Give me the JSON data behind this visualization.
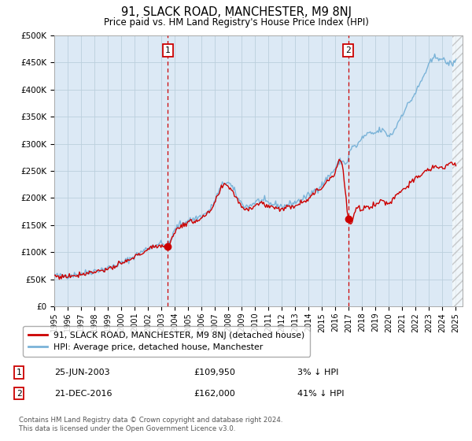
{
  "title": "91, SLACK ROAD, MANCHESTER, M9 8NJ",
  "subtitle": "Price paid vs. HM Land Registry's House Price Index (HPI)",
  "ylim": [
    0,
    500000
  ],
  "yticks": [
    0,
    50000,
    100000,
    150000,
    200000,
    250000,
    300000,
    350000,
    400000,
    450000,
    500000
  ],
  "ytick_labels": [
    "£0",
    "£50K",
    "£100K",
    "£150K",
    "£200K",
    "£250K",
    "£300K",
    "£350K",
    "£400K",
    "£450K",
    "£500K"
  ],
  "xlim_start": 1995.0,
  "xlim_end": 2025.5,
  "xtick_years": [
    1995,
    1996,
    1997,
    1998,
    1999,
    2000,
    2001,
    2002,
    2003,
    2004,
    2005,
    2006,
    2007,
    2008,
    2009,
    2010,
    2011,
    2012,
    2013,
    2014,
    2015,
    2016,
    2017,
    2018,
    2019,
    2020,
    2021,
    2022,
    2023,
    2024,
    2025
  ],
  "hpi_color": "#7ab3d8",
  "price_color": "#cc0000",
  "marker1_x": 2003.486,
  "marker1_y": 109950,
  "marker2_x": 2016.972,
  "marker2_y": 162000,
  "marker1_label": "1",
  "marker2_label": "2",
  "marker1_date": "25-JUN-2003",
  "marker1_price": "£109,950",
  "marker1_hpi": "3% ↓ HPI",
  "marker2_date": "21-DEC-2016",
  "marker2_price": "£162,000",
  "marker2_hpi": "41% ↓ HPI",
  "legend_line1": "91, SLACK ROAD, MANCHESTER, M9 8NJ (detached house)",
  "legend_line2": "HPI: Average price, detached house, Manchester",
  "footnote": "Contains HM Land Registry data © Crown copyright and database right 2024.\nThis data is licensed under the Open Government Licence v3.0.",
  "bg_color": "#dce9f5",
  "grid_color": "#bbcfdd"
}
